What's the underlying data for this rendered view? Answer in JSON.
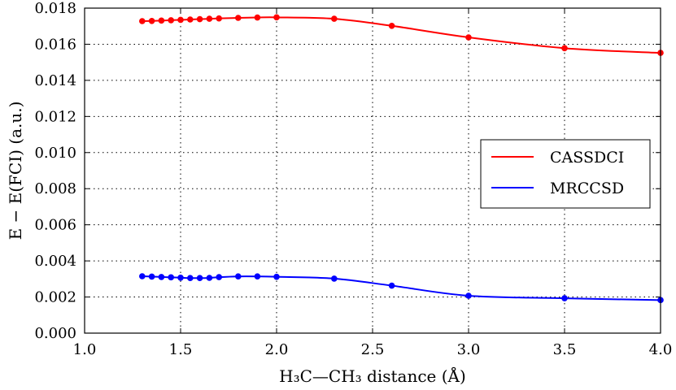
{
  "chart_data": {
    "type": "line",
    "xlabel": "H₃C—CH₃ distance (Å)",
    "ylabel": "E − E(FCI) (a.u.)",
    "xlim": [
      1.0,
      4.0
    ],
    "ylim": [
      0.0,
      0.018
    ],
    "grid": true,
    "legend_position": "center-right",
    "x_ticks": [
      "1.0",
      "1.5",
      "2.0",
      "2.5",
      "3.0",
      "3.5",
      "4.0"
    ],
    "y_ticks": [
      "0.000",
      "0.002",
      "0.004",
      "0.006",
      "0.008",
      "0.010",
      "0.012",
      "0.014",
      "0.016",
      "0.018"
    ],
    "x_tick_values": [
      1.0,
      1.5,
      2.0,
      2.5,
      3.0,
      3.5,
      4.0
    ],
    "y_tick_values": [
      0.0,
      0.002,
      0.004,
      0.006,
      0.008,
      0.01,
      0.012,
      0.014,
      0.016,
      0.018
    ],
    "series": [
      {
        "name": "CASSDCI",
        "color": "#ff0000",
        "x": [
          1.3,
          1.35,
          1.4,
          1.45,
          1.5,
          1.55,
          1.6,
          1.65,
          1.7,
          1.8,
          1.9,
          2.0,
          2.3,
          2.6,
          3.0,
          3.5,
          4.0
        ],
        "y": [
          0.01728,
          0.01729,
          0.01731,
          0.01733,
          0.01735,
          0.01737,
          0.01739,
          0.01741,
          0.01743,
          0.01746,
          0.01748,
          0.01749,
          0.01741,
          0.01702,
          0.01638,
          0.01578,
          0.01552
        ]
      },
      {
        "name": "MRCCSD",
        "color": "#0000ff",
        "x": [
          1.3,
          1.35,
          1.4,
          1.45,
          1.5,
          1.55,
          1.6,
          1.65,
          1.7,
          1.8,
          1.9,
          2.0,
          2.3,
          2.6,
          3.0,
          3.5,
          4.0
        ],
        "y": [
          0.00315,
          0.00313,
          0.00311,
          0.00309,
          0.00307,
          0.00305,
          0.00305,
          0.00306,
          0.0031,
          0.00314,
          0.00314,
          0.00312,
          0.00302,
          0.00263,
          0.00207,
          0.00193,
          0.00183
        ]
      }
    ]
  }
}
